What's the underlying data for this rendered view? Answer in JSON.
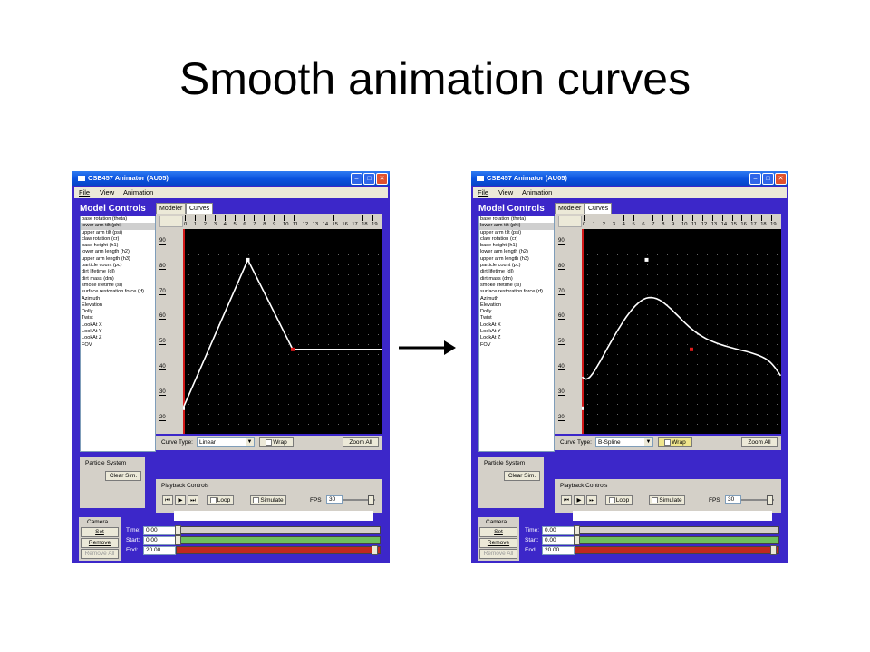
{
  "slide": {
    "title": "Smooth animation curves"
  },
  "windows": [
    {
      "id": "w1",
      "title": "CSE457 Animator (AU05)",
      "menu": [
        "File",
        "View",
        "Animation"
      ],
      "model_controls_title": "Model Controls",
      "list_items": [
        "base rotation (theta)",
        "lower arm tilt (phi)",
        "upper arm tilt (psi)",
        "claw rotation (cr)",
        "base height (h1)",
        "lower arm length (h2)",
        "upper arm length (h3)",
        "particle count (pc)",
        "dirt lifetime (dl)",
        "dirt mass (dm)",
        "smoke lifetime (sl)",
        "surface restoration force (rf)",
        "Azimuth",
        "Elevation",
        "Dolly",
        "Twist",
        "LookAt X",
        "LookAt Y",
        "LookAt Z",
        "FOV"
      ],
      "selected_item": 1,
      "tabs": [
        "Modeler",
        "Curves"
      ],
      "ruler_labels": [
        "0",
        "1",
        "2",
        "3",
        "4",
        "5",
        "6",
        "7",
        "8",
        "9",
        "10",
        "11",
        "12",
        "13",
        "14",
        "15",
        "16",
        "17",
        "18",
        "19"
      ],
      "y_labels": [
        "90",
        "80",
        "70",
        "60",
        "50",
        "40",
        "30",
        "20"
      ],
      "curve_type_label": "Curve Type:",
      "curve_type_value": "Linear",
      "wrap_label": "Wrap",
      "wrap_checked": false,
      "zoom_all_label": "Zoom All",
      "particle_system_label": "Particle System",
      "clear_sim_label": "Clear Sim.",
      "playback_controls_label": "Playback Controls",
      "loop_label": "Loop",
      "simulate_label": "Simulate",
      "fps_label": "FPS",
      "fps_value": "30",
      "camera_label": "Camera",
      "set_label": "Set",
      "remove_label": "Remove",
      "remove_all_label": "Remove All",
      "time_label": "Time:",
      "time_value": "0.00",
      "start_label": "Start:",
      "start_value": "0.00",
      "end_label": "End:",
      "end_value": "20.00",
      "curve": {
        "type": "linear",
        "control_points": [
          [
            0,
            25
          ],
          [
            6.5,
            83
          ],
          [
            11,
            48
          ],
          [
            20,
            48
          ]
        ],
        "x_range": [
          0,
          20
        ],
        "y_range": [
          15,
          95
        ]
      }
    },
    {
      "id": "w2",
      "title": "CSE457 Animator (AU05)",
      "menu": [
        "File",
        "View",
        "Animation"
      ],
      "model_controls_title": "Model Controls",
      "list_items": [
        "base rotation (theta)",
        "lower arm tilt (phi)",
        "upper arm tilt (psi)",
        "claw rotation (cr)",
        "base height (h1)",
        "lower arm length (h2)",
        "upper arm length (h3)",
        "particle count (pc)",
        "dirt lifetime (dl)",
        "dirt mass (dm)",
        "smoke lifetime (sl)",
        "surface restoration force (rf)",
        "Azimuth",
        "Elevation",
        "Dolly",
        "Twist",
        "LookAt X",
        "LookAt Y",
        "LookAt Z",
        "FOV"
      ],
      "selected_item": 1,
      "tabs": [
        "Modeler",
        "Curves"
      ],
      "ruler_labels": [
        "0",
        "1",
        "2",
        "3",
        "4",
        "5",
        "6",
        "7",
        "8",
        "9",
        "10",
        "11",
        "12",
        "13",
        "14",
        "15",
        "16",
        "17",
        "18",
        "19"
      ],
      "y_labels": [
        "90",
        "80",
        "70",
        "60",
        "50",
        "40",
        "30",
        "20"
      ],
      "curve_type_label": "Curve Type:",
      "curve_type_value": "B-Spline",
      "wrap_label": "Wrap",
      "wrap_checked": true,
      "zoom_all_label": "Zoom All",
      "particle_system_label": "Particle System",
      "clear_sim_label": "Clear Sim.",
      "playback_controls_label": "Playback Controls",
      "loop_label": "Loop",
      "simulate_label": "Simulate",
      "fps_label": "FPS",
      "fps_value": "30",
      "camera_label": "Camera",
      "set_label": "Set",
      "remove_label": "Remove",
      "remove_all_label": "Remove All",
      "time_label": "Time:",
      "time_value": "0.00",
      "start_label": "Start:",
      "start_value": "0.00",
      "end_label": "End:",
      "end_value": "20.00",
      "curve": {
        "type": "bspline",
        "control_points": [
          [
            0,
            25
          ],
          [
            6.5,
            83
          ],
          [
            11,
            48
          ],
          [
            20,
            48
          ]
        ],
        "x_range": [
          0,
          20
        ],
        "y_range": [
          15,
          95
        ]
      }
    }
  ]
}
